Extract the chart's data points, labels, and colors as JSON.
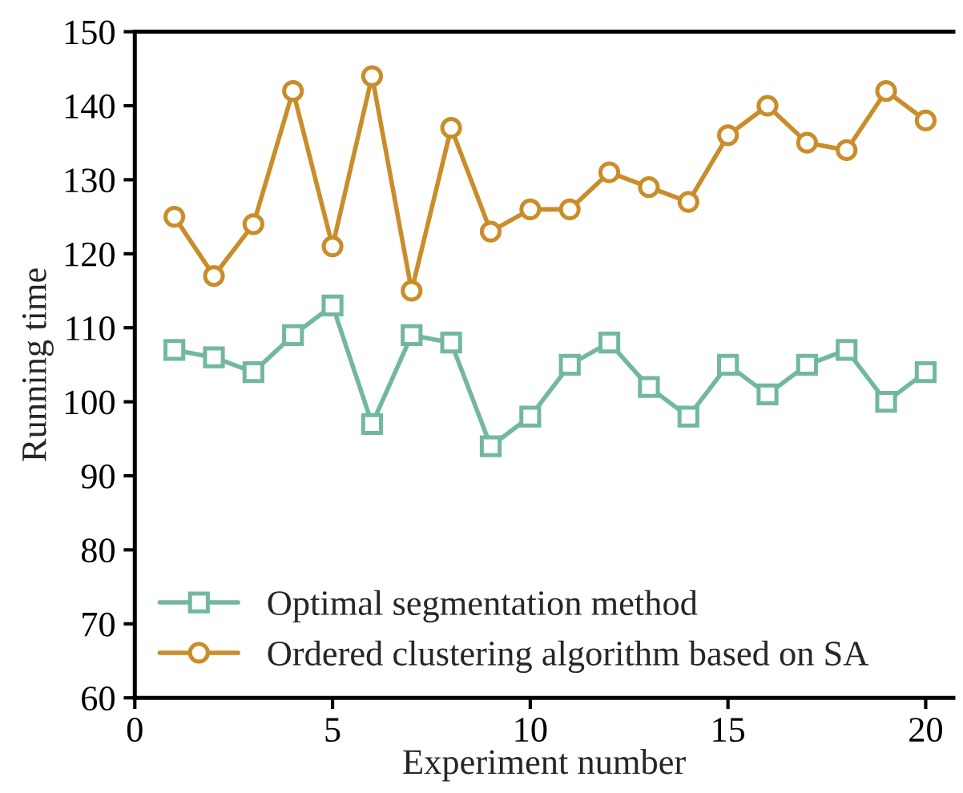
{
  "chart_data": {
    "type": "line",
    "xlabel": "Experiment number",
    "ylabel": "Running time",
    "x": [
      1,
      2,
      3,
      4,
      5,
      6,
      7,
      8,
      9,
      10,
      11,
      12,
      13,
      14,
      15,
      16,
      17,
      18,
      19,
      20
    ],
    "series": [
      {
        "name": "Optimal segmentation method",
        "color": "#72b8a0",
        "marker": "square",
        "values": [
          107,
          106,
          104,
          109,
          113,
          97,
          109,
          108,
          94,
          98,
          105,
          108,
          102,
          98,
          105,
          101,
          105,
          107,
          100,
          104
        ]
      },
      {
        "name": "Ordered clustering algorithm based on SA",
        "color": "#c98d2a",
        "marker": "circle",
        "values": [
          125,
          117,
          124,
          142,
          121,
          144,
          115,
          137,
          123,
          126,
          126,
          131,
          129,
          127,
          136,
          140,
          135,
          134,
          142,
          138
        ]
      }
    ],
    "xlim": [
      0,
      20.7
    ],
    "xticks": [
      0,
      5,
      10,
      15,
      20
    ],
    "ylim": [
      60,
      150
    ],
    "yticks": [
      60,
      70,
      80,
      90,
      100,
      110,
      120,
      130,
      140,
      150
    ],
    "grid": false,
    "legend": "bottom left",
    "line_style": "solid"
  }
}
